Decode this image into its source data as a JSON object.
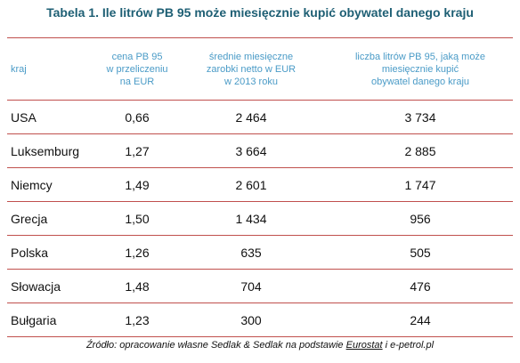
{
  "header": {
    "title": "Tabela 1. Ile litrów PB 95 może miesięcznie kupić obywatel danego kraju"
  },
  "table": {
    "columns": [
      [
        "kraj"
      ],
      [
        "cena PB 95",
        "w przeliczeniu",
        "na EUR"
      ],
      [
        "średnie miesięczne",
        "zarobki  netto w EUR",
        "w 2013 roku"
      ],
      [
        "liczba litrów PB 95, jaką może",
        "miesięcznie kupić",
        "obywatel danego kraju"
      ]
    ],
    "rows": [
      [
        "USA",
        "0,66",
        "2 464",
        "3 734"
      ],
      [
        "Luksemburg",
        "1,27",
        "3 664",
        "2 885"
      ],
      [
        "Niemcy",
        "1,49",
        "2 601",
        "1 747"
      ],
      [
        "Grecja",
        "1,50",
        "1 434",
        "956"
      ],
      [
        "Polska",
        "1,26",
        "635",
        "505"
      ],
      [
        "Słowacja",
        "1,48",
        "704",
        "476"
      ],
      [
        "Bułgaria",
        "1,23",
        "300",
        "244"
      ]
    ]
  },
  "footer": {
    "source": [
      "Źródło: opracowanie własne  Sedlak & Sedlak na podstawie ",
      "Eurostat",
      "  i e-petrol.pl"
    ]
  }
}
